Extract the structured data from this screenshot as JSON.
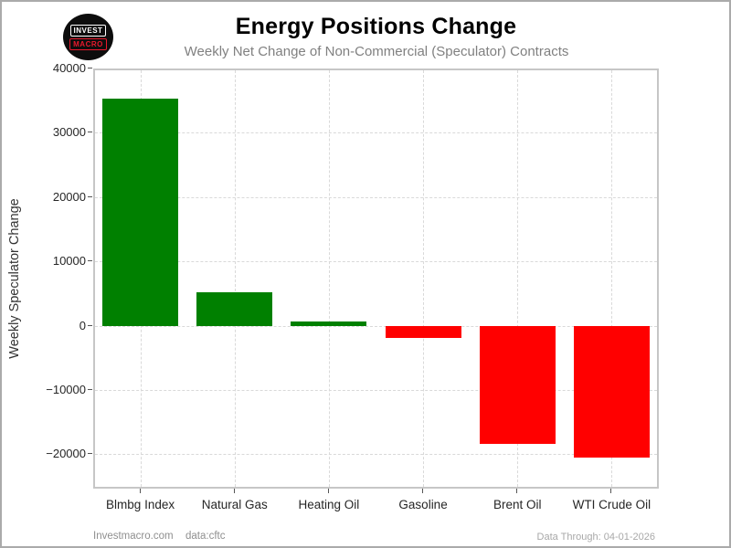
{
  "header": {
    "title": "Energy Positions Change",
    "subtitle": "Weekly Net Change of Non-Commercial (Speculator) Contracts",
    "logo": {
      "line1": "INVEST",
      "line2": "MACRO",
      "bg_color": "#0d0d0d",
      "invest_color": "#ffffff",
      "macro_color": "#e8192c"
    }
  },
  "chart_data": {
    "type": "bar",
    "title": "Energy Positions Change",
    "subtitle": "Weekly Net Change of Non-Commercial (Speculator) Contracts",
    "xlabel": "",
    "ylabel": "Weekly Speculator Change",
    "categories": [
      "Blmbg Index",
      "Natural Gas",
      "Heating Oil",
      "Gasoline",
      "Brent Oil",
      "WTI Crude Oil"
    ],
    "values": [
      35300,
      5200,
      650,
      -1900,
      -18300,
      -20400
    ],
    "positive_color": "#008000",
    "negative_color": "#ff0000",
    "ylim": [
      -25340,
      40000
    ],
    "yticks": [
      40000,
      30000,
      20000,
      10000,
      0,
      -10000,
      -20000
    ],
    "grid": "dashed-both-axes",
    "legend": "none",
    "bar_width_fraction": 0.8
  },
  "footer": {
    "left1": "Investmacro.com",
    "left2": "data:cftc",
    "right": "Data Through: 04-01-2026"
  }
}
